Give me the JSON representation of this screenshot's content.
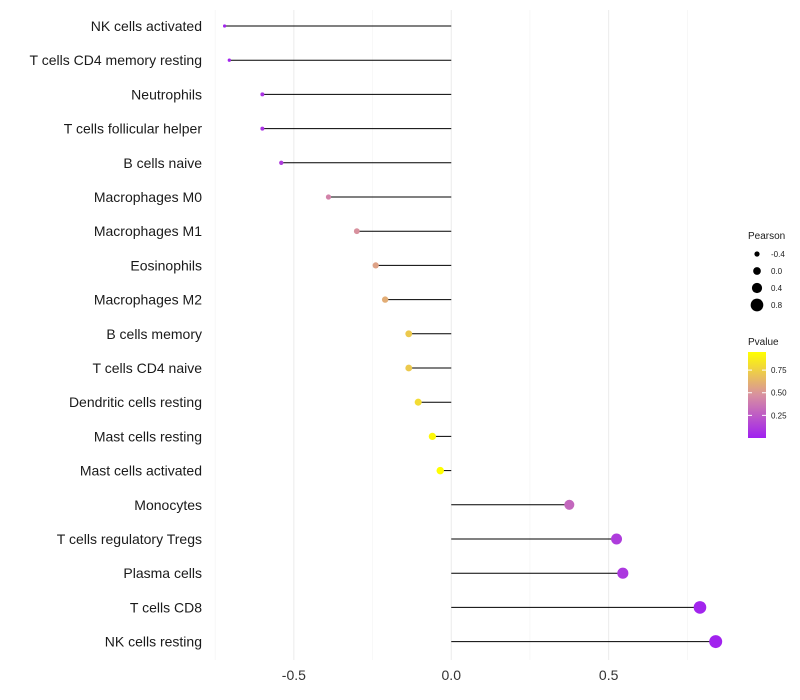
{
  "chart_data": {
    "type": "lollipop",
    "title": "",
    "xlabel": "",
    "ylabel": "",
    "xlim": [
      -0.76,
      0.86
    ],
    "x_ticks": [
      -0.5,
      0.0,
      0.5
    ],
    "x_tick_labels": [
      "-0.5",
      "0.0",
      "0.5"
    ],
    "grid": true,
    "categories": [
      "NK cells activated",
      "T cells CD4 memory resting",
      "Neutrophils",
      "T cells follicular helper",
      "B cells naive",
      "Macrophages M0",
      "Macrophages M1",
      "Eosinophils",
      "Macrophages M2",
      "B cells memory",
      "T cells CD4 naive",
      "Dendritic cells resting",
      "Mast cells resting",
      "Mast cells activated",
      "Monocytes",
      "T cells regulatory  Tregs",
      "Plasma cells",
      "T cells CD8",
      "NK cells resting"
    ],
    "pearson": [
      -0.72,
      -0.705,
      -0.6,
      -0.6,
      -0.54,
      -0.39,
      -0.3,
      -0.24,
      -0.21,
      -0.135,
      -0.135,
      -0.105,
      -0.06,
      -0.035,
      0.375,
      0.525,
      0.545,
      0.79,
      0.84
    ],
    "pvalue": [
      0.02,
      0.02,
      0.08,
      0.08,
      0.12,
      0.42,
      0.48,
      0.55,
      0.6,
      0.72,
      0.72,
      0.8,
      0.92,
      0.97,
      0.3,
      0.12,
      0.1,
      0.02,
      0.01
    ],
    "legend": {
      "position": "right",
      "size_title": "Pearson",
      "size_values": [
        -0.4,
        0.0,
        0.4,
        0.8
      ],
      "size_labels": [
        "-0.4",
        "0.0",
        "0.4",
        "0.8"
      ],
      "color_title": "Pvalue",
      "color_range": [
        0.0,
        0.95
      ],
      "color_ticks": [
        0.25,
        0.5,
        0.75
      ],
      "color_tick_labels": [
        "0.25",
        "0.50",
        "0.75"
      ]
    },
    "colors": {
      "low": "#a020f0",
      "mid": "#d890a0",
      "high": "#ffff00",
      "segment": "#000000",
      "grid": "#ebebeb"
    }
  }
}
